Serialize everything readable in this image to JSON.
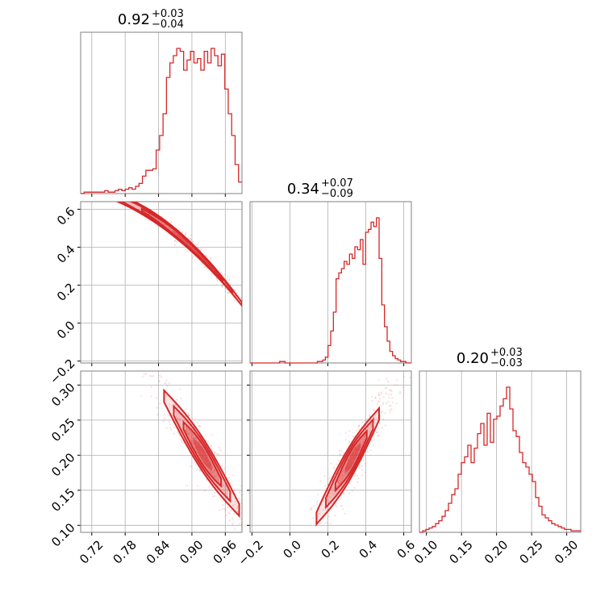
{
  "colors": {
    "series": "#d62728",
    "points": "#e88080",
    "grid": "#b0b0b0",
    "frame": "#808080"
  },
  "chart_data": {
    "type": "corner",
    "parameters": [
      {
        "range": [
          0.7,
          0.99
        ],
        "ticks": [
          0.72,
          0.78,
          0.84,
          0.9,
          0.96
        ],
        "tick_labels": [
          "0.72",
          "0.78",
          "0.84",
          "0.90",
          "0.96"
        ],
        "title_value": "0.92",
        "title_plus": "+0.03",
        "title_minus": "−0.04",
        "hist": [
          0,
          1,
          1,
          1,
          1,
          1,
          1,
          2,
          1,
          1,
          2,
          3,
          2,
          3,
          4,
          3,
          5,
          7,
          12,
          16,
          16,
          17,
          30,
          40,
          55,
          80,
          90,
          95,
          100,
          98,
          85,
          92,
          98,
          90,
          93,
          85,
          98,
          90,
          100,
          95,
          88,
          96,
          72,
          55,
          40,
          20,
          8
        ],
        "hist_max": 100
      },
      {
        "range": [
          -0.21,
          0.64
        ],
        "ticks": [
          -0.2,
          0.0,
          0.2,
          0.4,
          0.6
        ],
        "tick_labels": [
          "−0.2",
          "0.0",
          "0.2",
          "0.4",
          "0.6"
        ],
        "title_value": "0.34",
        "title_plus": "+0.07",
        "title_minus": "−0.09",
        "hist": [
          0,
          0,
          0,
          0,
          0,
          0,
          0,
          0,
          0,
          0,
          0,
          1,
          1,
          0,
          0,
          0,
          0,
          0,
          0,
          0,
          0,
          0,
          0,
          0,
          0,
          1,
          1,
          2,
          4,
          12,
          22,
          35,
          58,
          62,
          65,
          70,
          68,
          75,
          72,
          80,
          78,
          85,
          68,
          90,
          92,
          97,
          94,
          100,
          72,
          40,
          25,
          15,
          8,
          5,
          3,
          2,
          1,
          1,
          0,
          0
        ],
        "hist_max": 100
      },
      {
        "range": [
          0.09,
          0.32
        ],
        "ticks": [
          0.1,
          0.15,
          0.2,
          0.25,
          0.3
        ],
        "tick_labels": [
          "0.10",
          "0.15",
          "0.20",
          "0.25",
          "0.30"
        ],
        "title_value": "0.20",
        "title_plus": "+0.03",
        "title_minus": "−0.03",
        "hist": [
          0,
          1,
          2,
          3,
          4,
          6,
          8,
          11,
          15,
          20,
          26,
          30,
          40,
          48,
          52,
          60,
          48,
          58,
          68,
          75,
          60,
          82,
          62,
          78,
          80,
          87,
          92,
          100,
          85,
          70,
          66,
          55,
          48,
          45,
          40,
          35,
          24,
          18,
          12,
          10,
          8,
          6,
          5,
          4,
          3,
          2,
          2,
          1,
          1,
          1
        ],
        "hist_max": 100
      }
    ]
  }
}
